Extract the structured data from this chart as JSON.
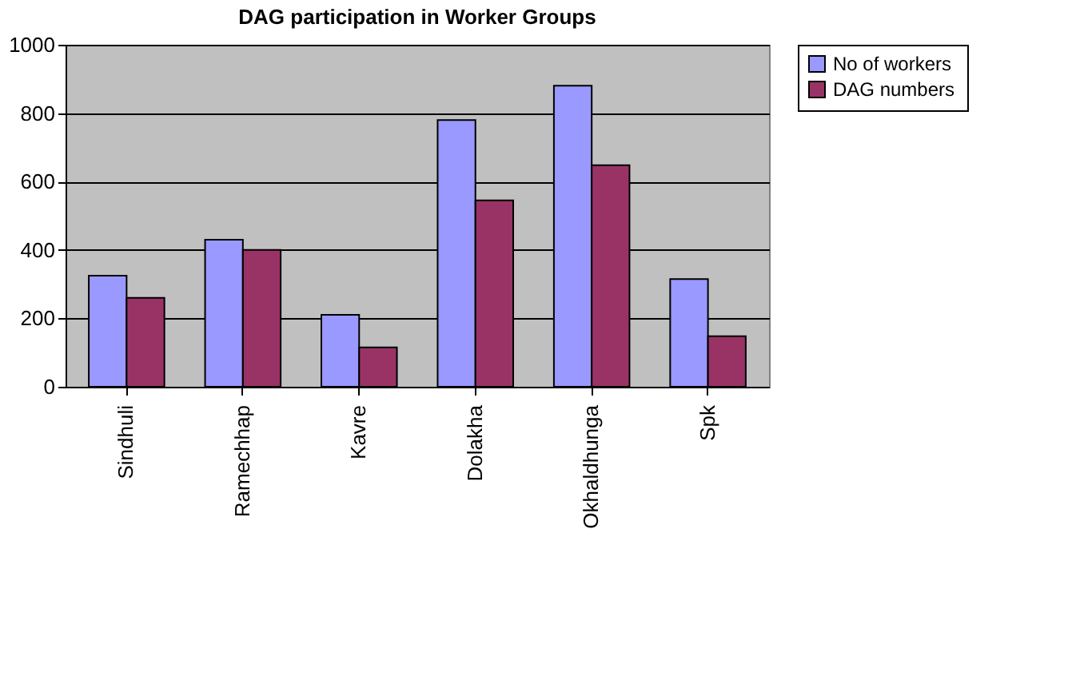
{
  "chart_data": {
    "type": "bar",
    "title": "DAG participation in Worker Groups",
    "categories": [
      "Sindhuli",
      "Ramechhap",
      "Kavre",
      "Dolakha",
      "Okhaldhunga",
      "Spk"
    ],
    "series": [
      {
        "name": "No of  workers",
        "color": "#9999ff",
        "values": [
          325,
          430,
          210,
          780,
          880,
          315
        ]
      },
      {
        "name": "DAG numbers",
        "color": "#993366",
        "values": [
          260,
          400,
          115,
          545,
          648,
          148
        ]
      }
    ],
    "ylim": [
      0,
      1000
    ],
    "yticks": [
      0,
      200,
      400,
      600,
      800,
      1000
    ],
    "grid": "y",
    "legend": "right"
  }
}
